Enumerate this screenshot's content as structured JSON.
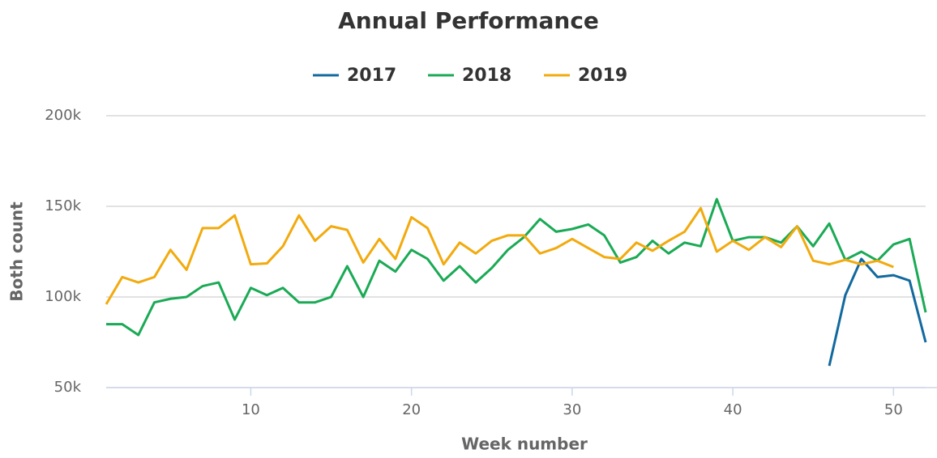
{
  "chart_data": {
    "type": "line",
    "title": "Annual Performance",
    "xlabel": "Week number",
    "ylabel": "Both count",
    "xlim": [
      1,
      52
    ],
    "xticks": [
      10,
      20,
      30,
      40,
      50
    ],
    "ylim": [
      50000,
      200000
    ],
    "yticks": [
      {
        "value": 50000,
        "label": "50k"
      },
      {
        "value": 100000,
        "label": "100k"
      },
      {
        "value": 150000,
        "label": "150k"
      },
      {
        "value": 200000,
        "label": "200k"
      }
    ],
    "grid": true,
    "legend": "top",
    "series": [
      {
        "name": "2017",
        "color": "#12699e",
        "x": [
          46,
          47,
          48,
          49,
          50,
          51,
          52
        ],
        "values": [
          62000,
          101000,
          121000,
          111000,
          112000,
          109000,
          75000
        ]
      },
      {
        "name": "2018",
        "color": "#1aaa55",
        "x": [
          1,
          2,
          3,
          4,
          5,
          6,
          7,
          8,
          9,
          10,
          11,
          12,
          13,
          14,
          15,
          16,
          17,
          18,
          19,
          20,
          21,
          22,
          23,
          24,
          25,
          26,
          27,
          28,
          29,
          30,
          31,
          32,
          33,
          34,
          35,
          36,
          37,
          38,
          39,
          40,
          41,
          42,
          43,
          44,
          45,
          46,
          47,
          48,
          49,
          50,
          51,
          52
        ],
        "values": [
          85000,
          85000,
          79000,
          97000,
          99000,
          100000,
          106000,
          108000,
          87500,
          105000,
          101000,
          105000,
          97000,
          97000,
          100000,
          117000,
          100000,
          120000,
          114000,
          126000,
          121000,
          109000,
          117000,
          108000,
          116000,
          126000,
          133000,
          143000,
          136000,
          137500,
          140000,
          134000,
          119000,
          122000,
          131000,
          124000,
          130000,
          128000,
          154000,
          131000,
          133000,
          133000,
          130000,
          139000,
          128000,
          140500,
          120500,
          125000,
          120000,
          129000,
          132000,
          91500
        ]
      },
      {
        "name": "2019",
        "color": "#f2aa0d",
        "x": [
          1,
          2,
          3,
          4,
          5,
          6,
          7,
          8,
          9,
          10,
          11,
          12,
          13,
          14,
          15,
          16,
          17,
          18,
          19,
          20,
          21,
          22,
          23,
          24,
          25,
          26,
          27,
          28,
          29,
          30,
          31,
          32,
          33,
          34,
          35,
          36,
          37,
          38,
          39,
          40,
          41,
          42,
          43,
          44,
          45,
          46,
          47,
          48,
          49,
          50
        ],
        "values": [
          96000,
          111000,
          108000,
          111000,
          126000,
          115000,
          138000,
          138000,
          145000,
          118000,
          118500,
          128000,
          145000,
          131000,
          139000,
          137000,
          119000,
          132000,
          121000,
          144000,
          138000,
          118000,
          130000,
          124000,
          131000,
          134000,
          134000,
          124000,
          127000,
          132000,
          127000,
          122000,
          121000,
          130000,
          125500,
          131000,
          136000,
          149000,
          125000,
          131000,
          126000,
          133000,
          127500,
          139000,
          120000,
          118000,
          120500,
          118000,
          120000,
          116500
        ]
      }
    ]
  }
}
